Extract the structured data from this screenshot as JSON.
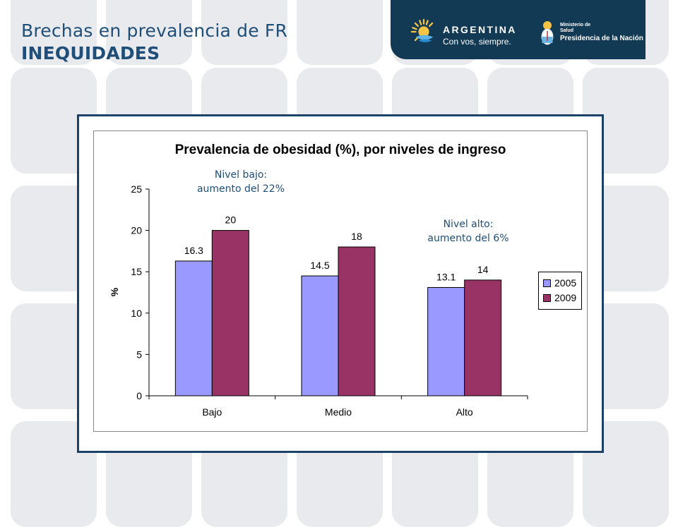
{
  "slide": {
    "title_line1": "Brechas en prevalencia de FR",
    "title_line2": "INEQUIDADES"
  },
  "header": {
    "brand_name": "ARGENTINA",
    "brand_slogan": "Con vos, siempre.",
    "ministry_line1": "Ministerio de",
    "ministry_line2": "Salud",
    "ministry_line3": "Presidencia de la Nación",
    "background_color": "#123a55"
  },
  "annotations": {
    "low": {
      "line1": "Nivel bajo:",
      "line2": "aumento del 22%"
    },
    "high": {
      "line1": "Nivel alto:",
      "line2": "aumento del 6%"
    }
  },
  "chart_data": {
    "type": "bar",
    "title": "Prevalencia de obesidad (%), por niveles de ingreso",
    "xlabel": "",
    "ylabel": "%",
    "categories": [
      "Bajo",
      "Medio",
      "Alto"
    ],
    "series": [
      {
        "name": "2005",
        "values": [
          16.3,
          14.5,
          13.1
        ],
        "labels": [
          "16.3",
          "14.5",
          "13.1"
        ],
        "color": "#9999ff"
      },
      {
        "name": "2009",
        "values": [
          20,
          18,
          14
        ],
        "labels": [
          "20",
          "18",
          "14"
        ],
        "color": "#993366"
      }
    ],
    "ylim": [
      0,
      25
    ],
    "yticks": [
      0,
      5,
      10,
      15,
      20,
      25
    ],
    "grid": false,
    "legend": "right"
  }
}
